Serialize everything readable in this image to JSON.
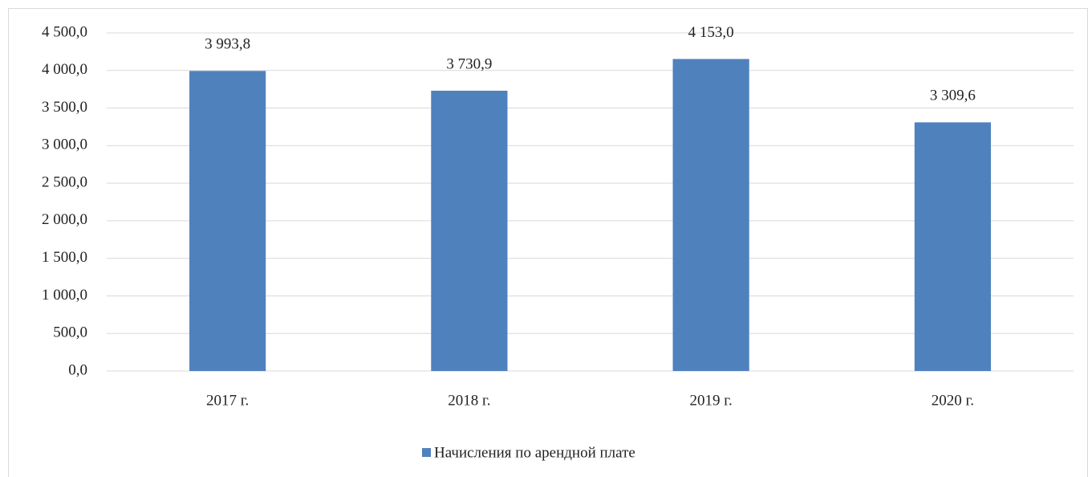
{
  "chart_data": {
    "type": "bar",
    "categories": [
      "2017 г.",
      "2018 г.",
      "2019 г.",
      "2020 г."
    ],
    "series": [
      {
        "name": "Начисления по арендной плате",
        "color": "#4f81bd",
        "values": [
          3993.8,
          3730.9,
          4153.0,
          3309.6
        ],
        "value_labels": [
          "3 993,8",
          "3 730,9",
          "4 153,0",
          "3 309,6"
        ]
      }
    ],
    "ylim": [
      0,
      4500
    ],
    "yticks": [
      {
        "value": 0,
        "label": "0,0"
      },
      {
        "value": 500,
        "label": "500,0"
      },
      {
        "value": 1000,
        "label": "1 000,0"
      },
      {
        "value": 1500,
        "label": "1 500,0"
      },
      {
        "value": 2000,
        "label": "2 000,0"
      },
      {
        "value": 2500,
        "label": "2 500,0"
      },
      {
        "value": 3000,
        "label": "3 000,0"
      },
      {
        "value": 3500,
        "label": "3 500,0"
      },
      {
        "value": 4000,
        "label": "4 000,0"
      },
      {
        "value": 4500,
        "label": "4 500,0"
      }
    ],
    "grid": true,
    "legend": "bottom"
  }
}
